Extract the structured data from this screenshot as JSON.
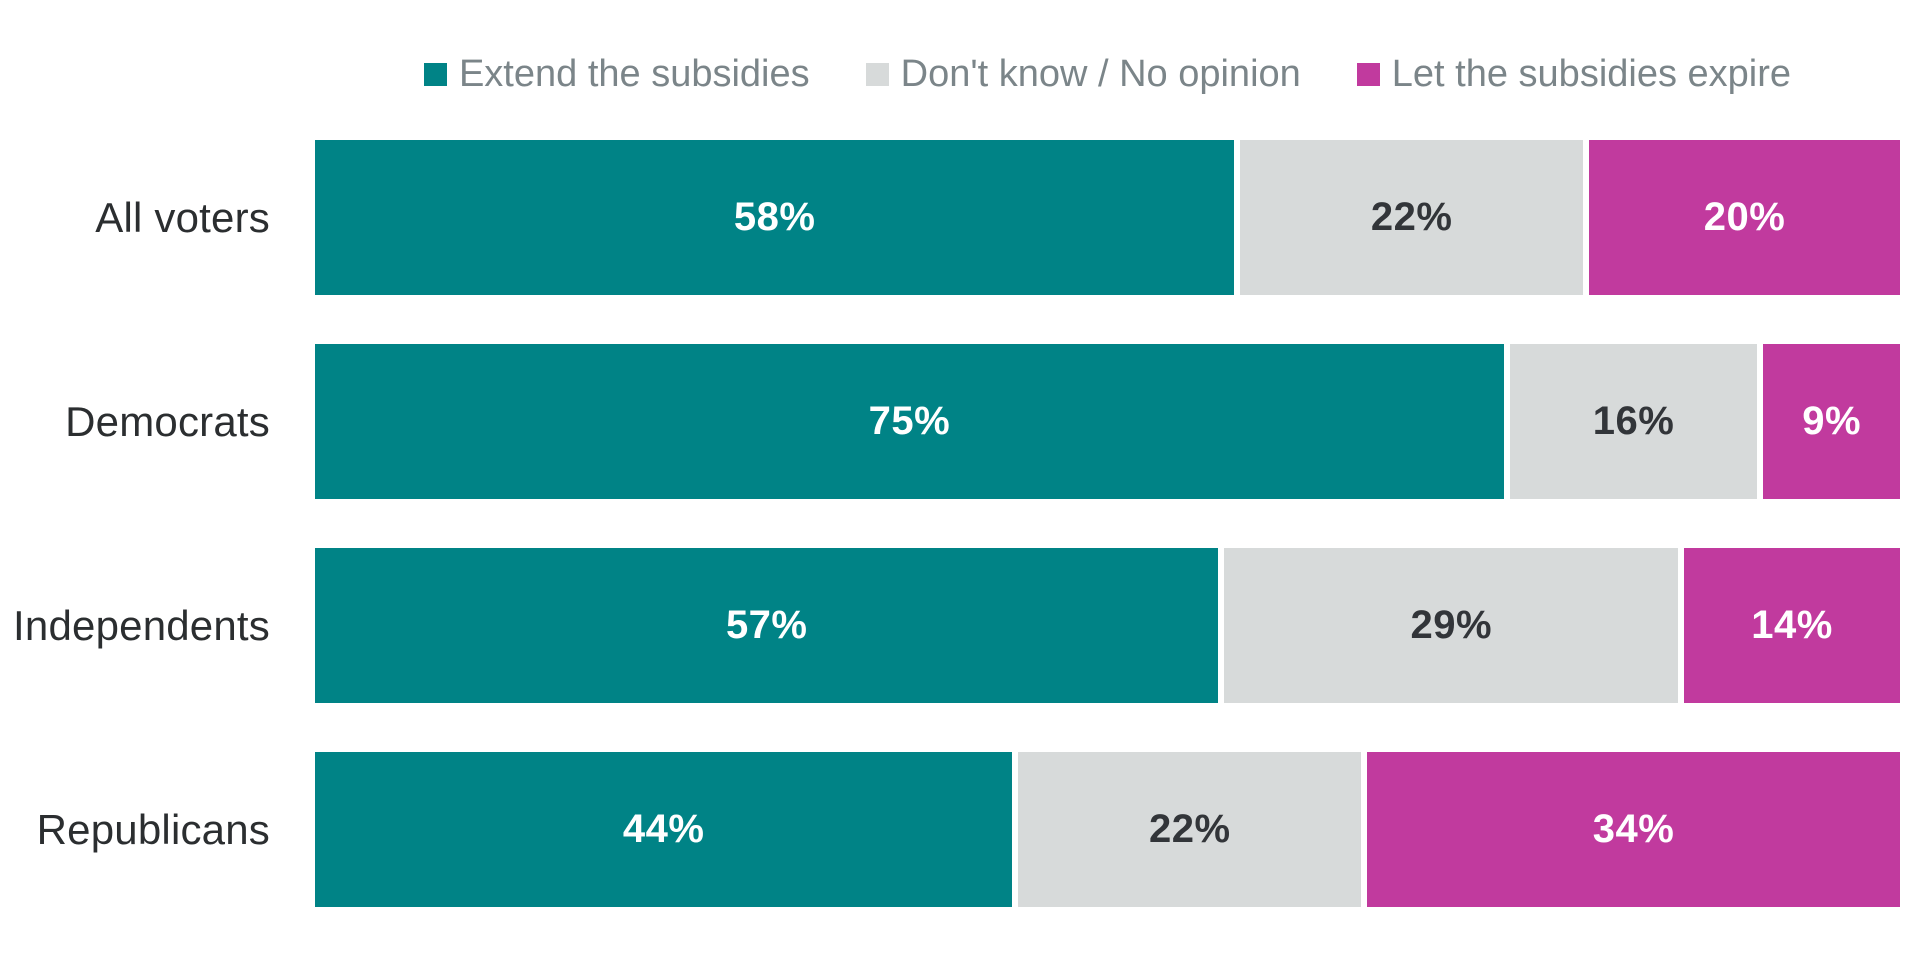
{
  "chart_data": {
    "type": "bar",
    "orientation": "horizontal-stacked",
    "title": "",
    "xlabel": "",
    "ylabel": "",
    "xlim": [
      0,
      100
    ],
    "grid": false,
    "legend_position": "top-center",
    "background_color": "#ffffff",
    "categories": [
      "All voters",
      "Democrats",
      "Independents",
      "Republicans"
    ],
    "series": [
      {
        "name": "Extend the subsidies",
        "color": "#008386",
        "label_text_color": "#ffffff",
        "values": [
          58,
          75,
          57,
          44
        ],
        "labels": [
          "58%",
          "75%",
          "57%",
          "44%"
        ]
      },
      {
        "name": "Don't know / No opinion",
        "color": "#d7dada",
        "label_text_color": "#323539",
        "values": [
          22,
          16,
          29,
          22
        ],
        "labels": [
          "22%",
          "16%",
          "29%",
          "22%"
        ]
      },
      {
        "name": "Let the subsidies expire",
        "color": "#c13a9e",
        "label_text_color": "#ffffff",
        "values": [
          20,
          9,
          14,
          34
        ],
        "labels": [
          "20%",
          "9%",
          "14%",
          "34%"
        ]
      }
    ],
    "styles": {
      "legend_text_color": "#7b8589",
      "category_label_color": "#2b2e30",
      "separator_color": "#ffffff"
    }
  }
}
